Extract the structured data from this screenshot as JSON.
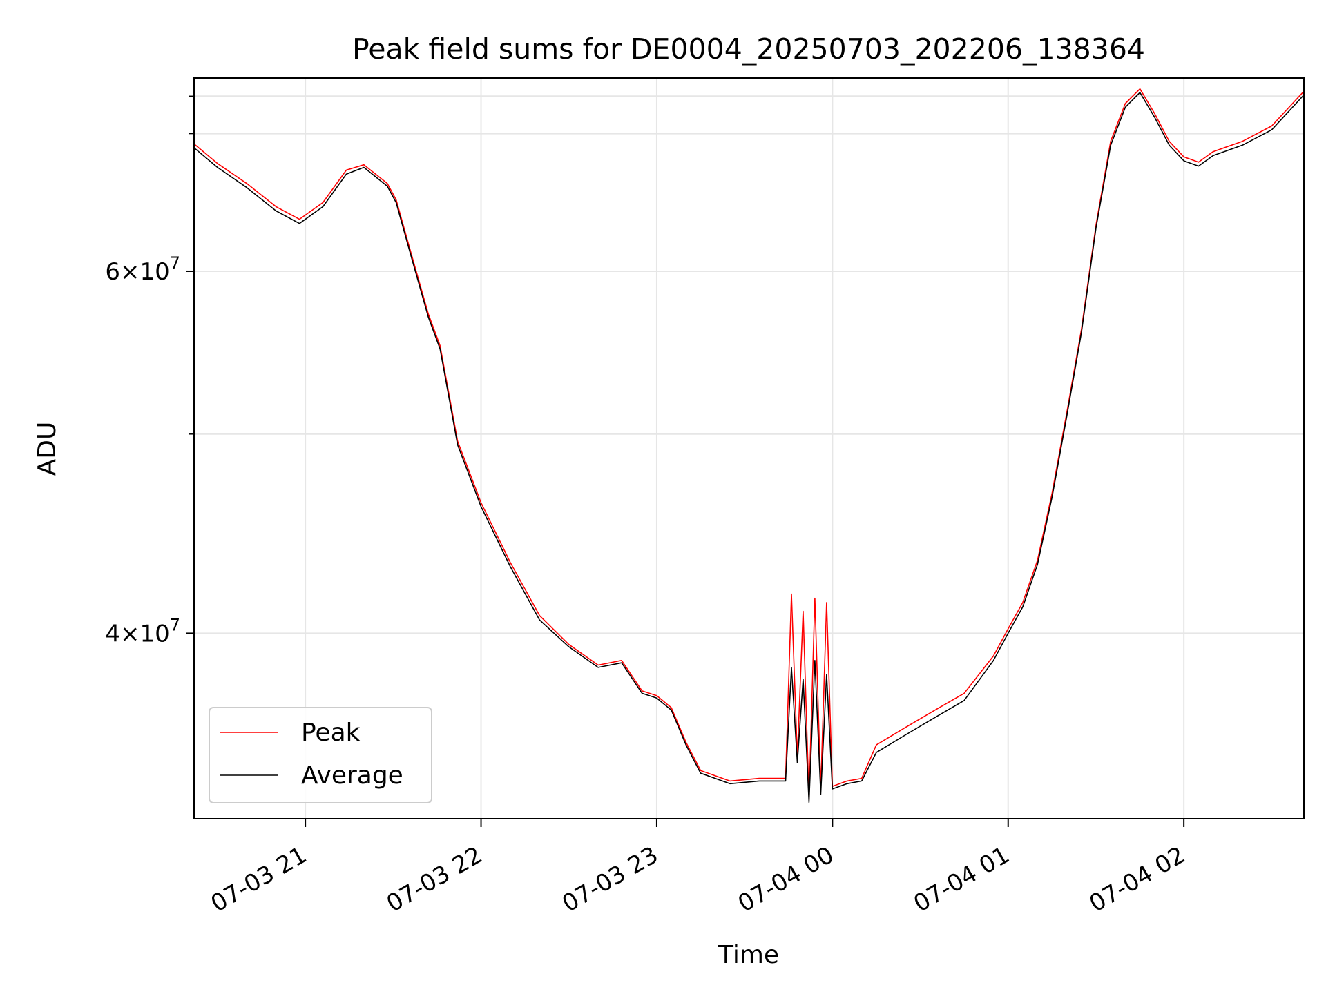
{
  "chart_data": {
    "type": "line",
    "title": "Peak field sums for DE0004_20250703_202206_138364",
    "xlabel": "Time",
    "ylabel": "ADU",
    "x_axis": "time",
    "y_scale": "log",
    "x_range": [
      "2025-07-03 20:22",
      "2025-07-04 02:41"
    ],
    "ylim": [
      32500000,
      74500000
    ],
    "grid": true,
    "legend_position": "lower-left",
    "x_ticks": [
      {
        "t": "2025-07-03 21:00",
        "label": "07-03 21"
      },
      {
        "t": "2025-07-03 22:00",
        "label": "07-03 22"
      },
      {
        "t": "2025-07-03 23:00",
        "label": "07-03 23"
      },
      {
        "t": "2025-07-04 00:00",
        "label": "07-04 00"
      },
      {
        "t": "2025-07-04 01:00",
        "label": "07-04 01"
      },
      {
        "t": "2025-07-04 02:00",
        "label": "07-04 02"
      }
    ],
    "y_major_ticks": [
      {
        "value": 40000000,
        "mantissa": "4",
        "exponent": "7"
      },
      {
        "value": 60000000,
        "mantissa": "6",
        "exponent": "7"
      }
    ],
    "y_minor_ticks": [
      50000000,
      70000000,
      73000000
    ],
    "series": [
      {
        "name": "Peak",
        "color": "#ff0000",
        "points": [
          [
            "2025-07-03 20:22",
            69200000
          ],
          [
            "2025-07-03 20:30",
            67700000
          ],
          [
            "2025-07-03 20:40",
            66200000
          ],
          [
            "2025-07-03 20:50",
            64500000
          ],
          [
            "2025-07-03 20:58",
            63600000
          ],
          [
            "2025-07-03 21:06",
            64800000
          ],
          [
            "2025-07-03 21:14",
            67200000
          ],
          [
            "2025-07-03 21:20",
            67600000
          ],
          [
            "2025-07-03 21:28",
            66200000
          ],
          [
            "2025-07-03 21:31",
            65000000
          ],
          [
            "2025-07-03 21:36",
            61300000
          ],
          [
            "2025-07-03 21:42",
            57200000
          ],
          [
            "2025-07-03 21:46",
            55200000
          ],
          [
            "2025-07-03 21:52",
            49600000
          ],
          [
            "2025-07-03 22:00",
            46300000
          ],
          [
            "2025-07-03 22:10",
            43300000
          ],
          [
            "2025-07-03 22:20",
            40800000
          ],
          [
            "2025-07-03 22:30",
            39500000
          ],
          [
            "2025-07-03 22:40",
            38600000
          ],
          [
            "2025-07-03 22:48",
            38800000
          ],
          [
            "2025-07-03 22:55",
            37500000
          ],
          [
            "2025-07-03 23:00",
            37300000
          ],
          [
            "2025-07-03 23:05",
            36800000
          ],
          [
            "2025-07-03 23:10",
            35400000
          ],
          [
            "2025-07-03 23:15",
            34300000
          ],
          [
            "2025-07-03 23:25",
            33900000
          ],
          [
            "2025-07-03 23:35",
            34000000
          ],
          [
            "2025-07-03 23:44",
            34000000
          ],
          [
            "2025-07-03 23:46",
            41800000
          ],
          [
            "2025-07-03 23:48",
            34800000
          ],
          [
            "2025-07-03 23:50",
            41000000
          ],
          [
            "2025-07-03 23:52",
            33200000
          ],
          [
            "2025-07-03 23:54",
            41600000
          ],
          [
            "2025-07-03 23:56",
            33600000
          ],
          [
            "2025-07-03 23:58",
            41400000
          ],
          [
            "2025-07-04 00:00",
            33700000
          ],
          [
            "2025-07-04 00:05",
            33900000
          ],
          [
            "2025-07-04 00:10",
            34000000
          ],
          [
            "2025-07-04 00:15",
            35300000
          ],
          [
            "2025-07-04 00:25",
            36000000
          ],
          [
            "2025-07-04 00:35",
            36700000
          ],
          [
            "2025-07-04 00:45",
            37400000
          ],
          [
            "2025-07-04 00:55",
            39000000
          ],
          [
            "2025-07-04 01:00",
            40200000
          ],
          [
            "2025-07-04 01:05",
            41400000
          ],
          [
            "2025-07-04 01:10",
            43400000
          ],
          [
            "2025-07-04 01:15",
            46800000
          ],
          [
            "2025-07-04 01:20",
            51200000
          ],
          [
            "2025-07-04 01:25",
            56200000
          ],
          [
            "2025-07-04 01:30",
            63200000
          ],
          [
            "2025-07-04 01:35",
            69400000
          ],
          [
            "2025-07-04 01:40",
            72400000
          ],
          [
            "2025-07-04 01:45",
            73600000
          ],
          [
            "2025-07-04 01:50",
            71600000
          ],
          [
            "2025-07-04 01:55",
            69400000
          ],
          [
            "2025-07-04 02:00",
            68200000
          ],
          [
            "2025-07-04 02:05",
            67800000
          ],
          [
            "2025-07-04 02:10",
            68600000
          ],
          [
            "2025-07-04 02:20",
            69400000
          ],
          [
            "2025-07-04 02:30",
            70600000
          ],
          [
            "2025-07-04 02:41",
            73400000
          ]
        ]
      },
      {
        "name": "Average",
        "color": "#000000",
        "points": [
          [
            "2025-07-03 20:22",
            68900000
          ],
          [
            "2025-07-03 20:30",
            67400000
          ],
          [
            "2025-07-03 20:40",
            65900000
          ],
          [
            "2025-07-03 20:50",
            64200000
          ],
          [
            "2025-07-03 20:58",
            63300000
          ],
          [
            "2025-07-03 21:06",
            64500000
          ],
          [
            "2025-07-03 21:14",
            66900000
          ],
          [
            "2025-07-03 21:20",
            67400000
          ],
          [
            "2025-07-03 21:28",
            66000000
          ],
          [
            "2025-07-03 21:31",
            64800000
          ],
          [
            "2025-07-03 21:36",
            61100000
          ],
          [
            "2025-07-03 21:42",
            57000000
          ],
          [
            "2025-07-03 21:46",
            55000000
          ],
          [
            "2025-07-03 21:52",
            49400000
          ],
          [
            "2025-07-03 22:00",
            46100000
          ],
          [
            "2025-07-03 22:10",
            43100000
          ],
          [
            "2025-07-03 22:20",
            40600000
          ],
          [
            "2025-07-03 22:30",
            39400000
          ],
          [
            "2025-07-03 22:40",
            38500000
          ],
          [
            "2025-07-03 22:48",
            38700000
          ],
          [
            "2025-07-03 22:55",
            37400000
          ],
          [
            "2025-07-03 23:00",
            37200000
          ],
          [
            "2025-07-03 23:05",
            36700000
          ],
          [
            "2025-07-03 23:10",
            35300000
          ],
          [
            "2025-07-03 23:15",
            34200000
          ],
          [
            "2025-07-03 23:25",
            33800000
          ],
          [
            "2025-07-03 23:35",
            33900000
          ],
          [
            "2025-07-03 23:44",
            33900000
          ],
          [
            "2025-07-03 23:46",
            38500000
          ],
          [
            "2025-07-03 23:48",
            34600000
          ],
          [
            "2025-07-03 23:50",
            38000000
          ],
          [
            "2025-07-03 23:52",
            33100000
          ],
          [
            "2025-07-03 23:54",
            38800000
          ],
          [
            "2025-07-03 23:56",
            33400000
          ],
          [
            "2025-07-03 23:58",
            38200000
          ],
          [
            "2025-07-04 00:00",
            33600000
          ],
          [
            "2025-07-04 00:05",
            33800000
          ],
          [
            "2025-07-04 00:10",
            33900000
          ],
          [
            "2025-07-04 00:15",
            35000000
          ],
          [
            "2025-07-04 00:25",
            35700000
          ],
          [
            "2025-07-04 00:35",
            36400000
          ],
          [
            "2025-07-04 00:45",
            37100000
          ],
          [
            "2025-07-04 00:55",
            38800000
          ],
          [
            "2025-07-04 01:00",
            40000000
          ],
          [
            "2025-07-04 01:05",
            41200000
          ],
          [
            "2025-07-04 01:10",
            43200000
          ],
          [
            "2025-07-04 01:15",
            46600000
          ],
          [
            "2025-07-04 01:20",
            51000000
          ],
          [
            "2025-07-04 01:25",
            56000000
          ],
          [
            "2025-07-04 01:30",
            63000000
          ],
          [
            "2025-07-04 01:35",
            69100000
          ],
          [
            "2025-07-04 01:40",
            72100000
          ],
          [
            "2025-07-04 01:45",
            73300000
          ],
          [
            "2025-07-04 01:50",
            71300000
          ],
          [
            "2025-07-04 01:55",
            69100000
          ],
          [
            "2025-07-04 02:00",
            67900000
          ],
          [
            "2025-07-04 02:05",
            67500000
          ],
          [
            "2025-07-04 02:10",
            68300000
          ],
          [
            "2025-07-04 02:20",
            69100000
          ],
          [
            "2025-07-04 02:30",
            70300000
          ],
          [
            "2025-07-04 02:41",
            73100000
          ]
        ]
      }
    ]
  }
}
